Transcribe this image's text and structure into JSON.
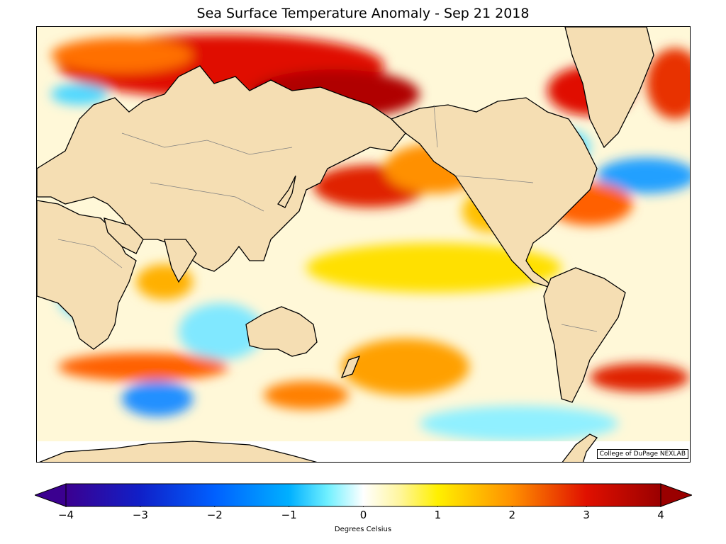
{
  "title": "Sea Surface Temperature Anomaly - Sep 21 2018",
  "credit": "College of DuPage NEXLAB",
  "colorbar": {
    "label": "Degrees Celsius",
    "min": -4,
    "max": 4,
    "ticks": [
      "−4",
      "−3",
      "−2",
      "−1",
      "0",
      "1",
      "2",
      "3",
      "4"
    ],
    "tick_values": [
      -4,
      -3,
      -2,
      -1,
      0,
      1,
      2,
      3,
      4
    ],
    "extend": "both",
    "colors": [
      "#3b0090",
      "#1020c8",
      "#0060ff",
      "#00b0ff",
      "#70f0ff",
      "#ffffff",
      "#fff000",
      "#ff9000",
      "#e01000",
      "#9a0000"
    ]
  },
  "colors": {
    "land": "#f5deb3",
    "coast": "#000000",
    "border": "#808080"
  }
}
